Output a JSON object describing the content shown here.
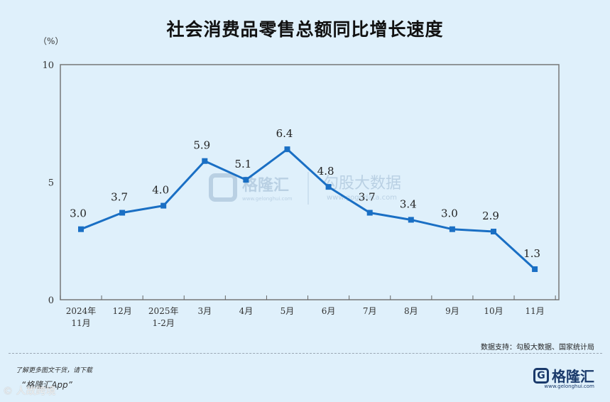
{
  "chart_data": {
    "type": "line",
    "title": "社会消费品零售总额同比增长速度",
    "ylabel": "（%）",
    "ylim": [
      0,
      10
    ],
    "yticks": [
      0,
      5,
      10
    ],
    "categories": [
      [
        "2024年",
        "11月"
      ],
      [
        "12月"
      ],
      [
        "2025年",
        "1-2月"
      ],
      [
        "3月"
      ],
      [
        "4月"
      ],
      [
        "5月"
      ],
      [
        "6月"
      ],
      [
        "7月"
      ],
      [
        "8月"
      ],
      [
        "9月"
      ],
      [
        "10月"
      ],
      [
        "11月"
      ]
    ],
    "series": [
      {
        "values": [
          3.0,
          3.7,
          4.0,
          5.9,
          5.1,
          6.4,
          4.8,
          3.7,
          3.4,
          3.0,
          2.9,
          1.3
        ]
      }
    ],
    "data_labels": [
      "3.0",
      "3.7",
      "4.0",
      "5.9",
      "5.1",
      "6.4",
      "4.8",
      "3.7",
      "3.4",
      "3.0",
      "2.9",
      "1.3"
    ],
    "grid": false,
    "line_color": "#1a6fc4"
  },
  "source_note": "数据支持：勾股大数据、国家统计局",
  "footer": {
    "note1": "了解更多图文干货，请下载",
    "note2": "“格隆汇App”",
    "watermark": "人故跨境"
  },
  "brand": {
    "name": "格隆汇",
    "url": "www.gelonghui.com"
  },
  "watermarks": [
    {
      "main": "格隆汇",
      "sub": "www.gelonghui.com"
    },
    {
      "main": "勾股大数据",
      "sub": "www.gogudata.com"
    }
  ]
}
